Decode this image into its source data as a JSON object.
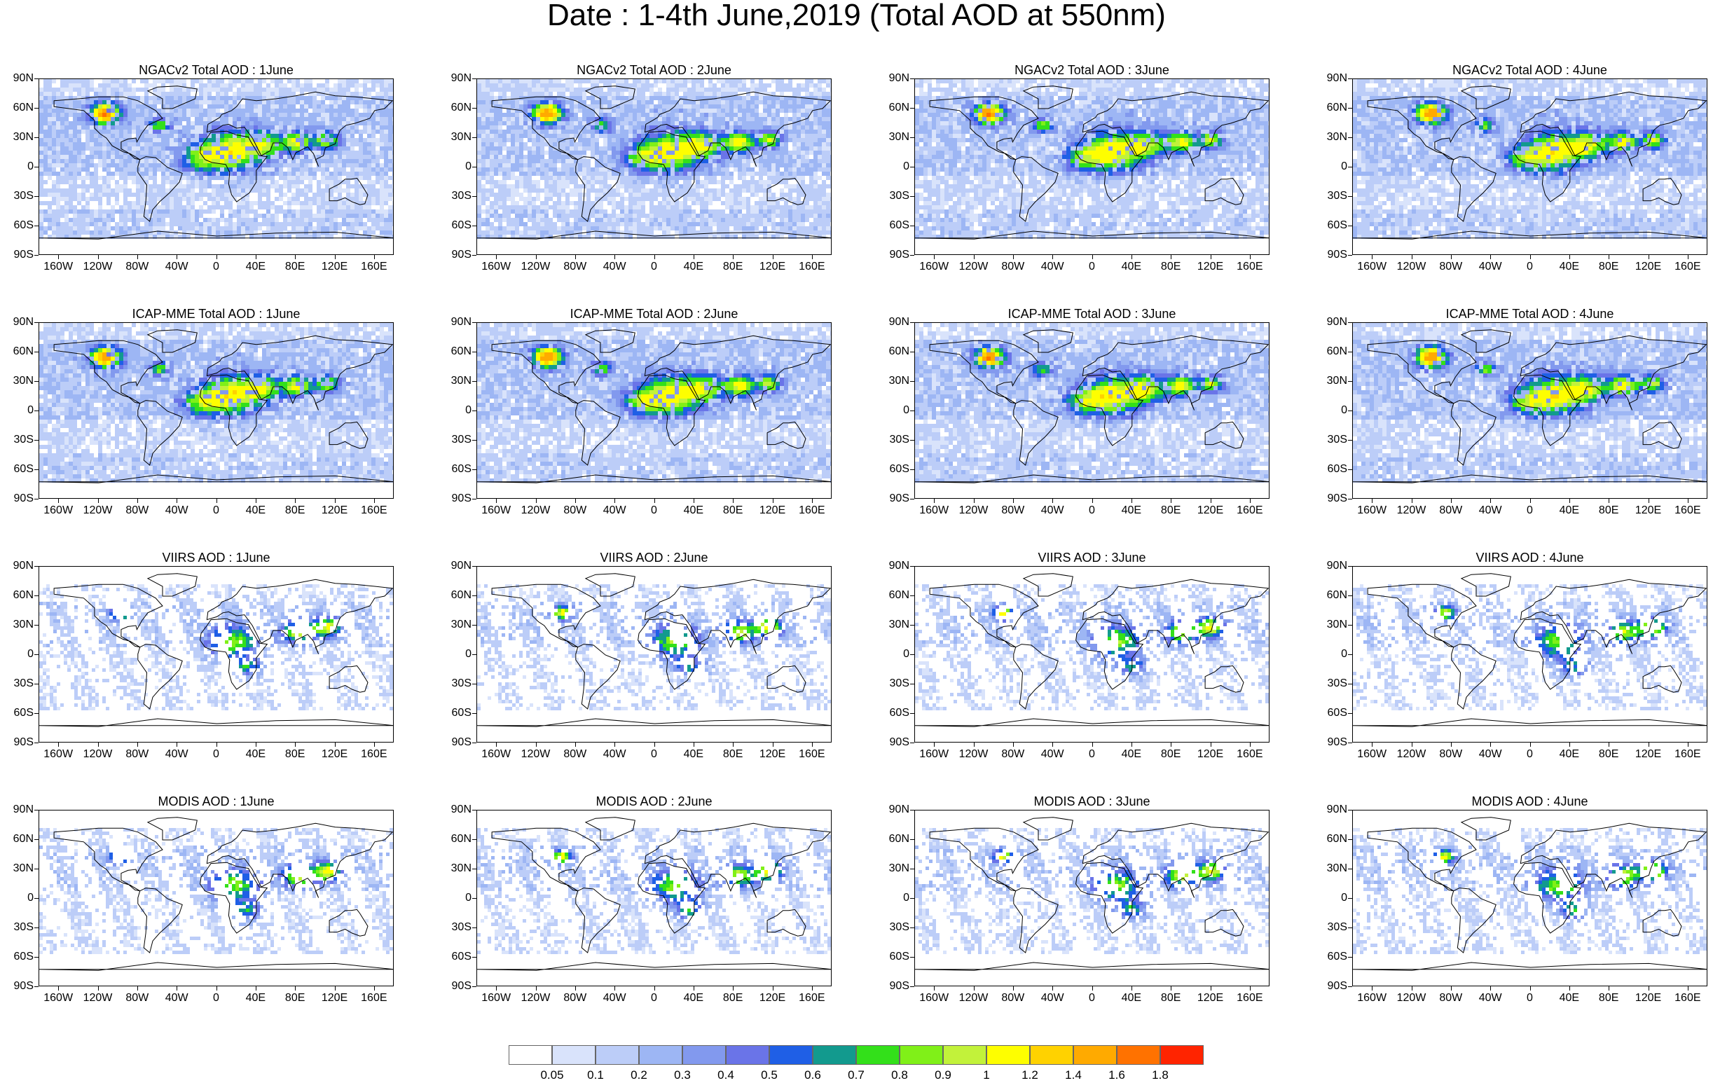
{
  "title": "Date : 1-4th June,2019 (Total AOD at 550nm)",
  "lat_labels": [
    "90N",
    "60N",
    "30N",
    "0",
    "30S",
    "60S",
    "90S"
  ],
  "lon_labels": [
    "160W",
    "120W",
    "80W",
    "40W",
    "0",
    "40E",
    "80E",
    "120E",
    "160E"
  ],
  "rows": [
    {
      "product": "NGACv2",
      "titles": [
        "NGACv2 Total AOD : 1June",
        "NGACv2 Total AOD : 2June",
        "NGACv2 Total AOD : 3June",
        "NGACv2 Total AOD : 4June"
      ]
    },
    {
      "product": "ICAP-MME",
      "titles": [
        "ICAP-MME Total AOD : 1June",
        "ICAP-MME Total AOD : 2June",
        "ICAP-MME Total AOD : 3June",
        "ICAP-MME Total AOD : 4June"
      ]
    },
    {
      "product": "VIIRS",
      "titles": [
        "VIIRS AOD : 1June",
        "VIIRS AOD : 2June",
        "VIIRS AOD : 3June",
        "VIIRS AOD : 4June"
      ]
    },
    {
      "product": "MODIS",
      "titles": [
        "MODIS AOD : 1June",
        "MODIS AOD : 2June",
        "MODIS AOD : 3June",
        "MODIS AOD : 4June"
      ]
    }
  ],
  "colorbar": {
    "labels": [
      "0.05",
      "0.1",
      "0.2",
      "0.3",
      "0.4",
      "0.5",
      "0.6",
      "0.7",
      "0.8",
      "0.9",
      "1",
      "1.2",
      "1.4",
      "1.6",
      "1.8"
    ],
    "colors": [
      "#ffffff",
      "#d9e3fb",
      "#bccdf8",
      "#9db6f4",
      "#8299ee",
      "#6a74e8",
      "#1f5fe6",
      "#129a8e",
      "#33e01a",
      "#80f018",
      "#c2f23a",
      "#fefe00",
      "#ffd200",
      "#ffaa00",
      "#ff7200",
      "#ff2400"
    ]
  }
}
